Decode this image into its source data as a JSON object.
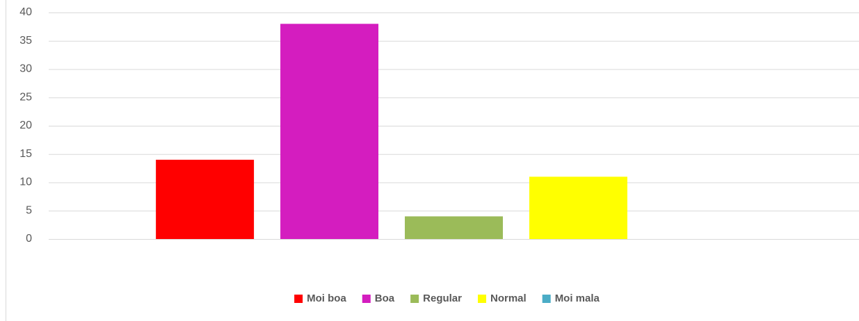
{
  "chart_data": {
    "type": "bar",
    "categories": [
      null
    ],
    "series": [
      {
        "name": "Moi boa",
        "color": "#ff0000",
        "values": [
          14
        ]
      },
      {
        "name": "Boa",
        "color": "#d41dbf",
        "values": [
          38
        ]
      },
      {
        "name": "Regular",
        "color": "#9bbb59",
        "values": [
          4
        ]
      },
      {
        "name": "Normal",
        "color": "#ffff00",
        "values": [
          11
        ]
      },
      {
        "name": "Moi mala",
        "color": "#4bacc6",
        "values": [
          0
        ]
      }
    ],
    "ylim": [
      0,
      40
    ],
    "yticks": [
      0,
      5,
      10,
      15,
      20,
      25,
      30,
      35,
      40
    ],
    "grid": true,
    "legend": "bottom"
  }
}
